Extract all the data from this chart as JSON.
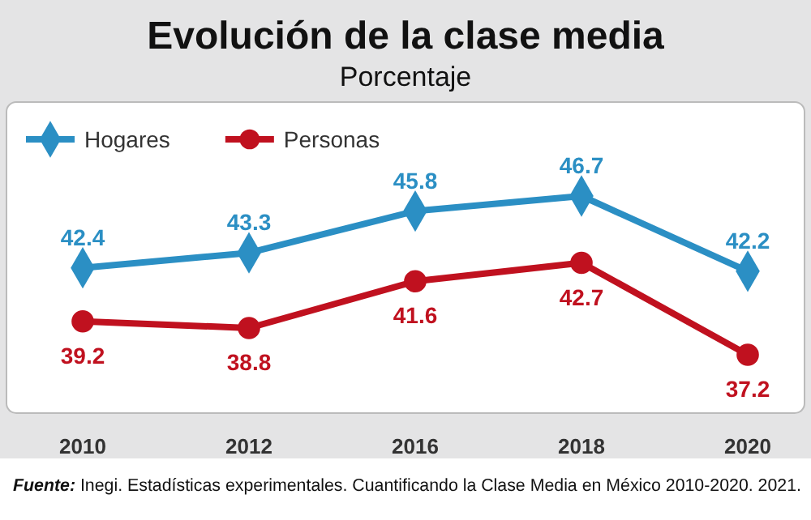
{
  "chart_data": {
    "type": "line",
    "title": "Evolución de la clase media",
    "subtitle": "Porcentaje",
    "categories": [
      "2010",
      "2012",
      "2016",
      "2018",
      "2020"
    ],
    "series": [
      {
        "name": "Hogares",
        "color": "#2b8fc4",
        "marker": "diamond",
        "values": [
          42.4,
          43.3,
          45.8,
          46.7,
          42.2
        ]
      },
      {
        "name": "Personas",
        "color": "#c0111f",
        "marker": "circle",
        "values": [
          39.2,
          38.8,
          41.6,
          42.7,
          37.2
        ]
      }
    ],
    "data_labels": true,
    "legend": "top left",
    "annotations": [
      "Fuente: Inegi. Estadísticas experimentales. Cuantificando la Clase Media en México 2010-2020. 2021."
    ]
  }
}
